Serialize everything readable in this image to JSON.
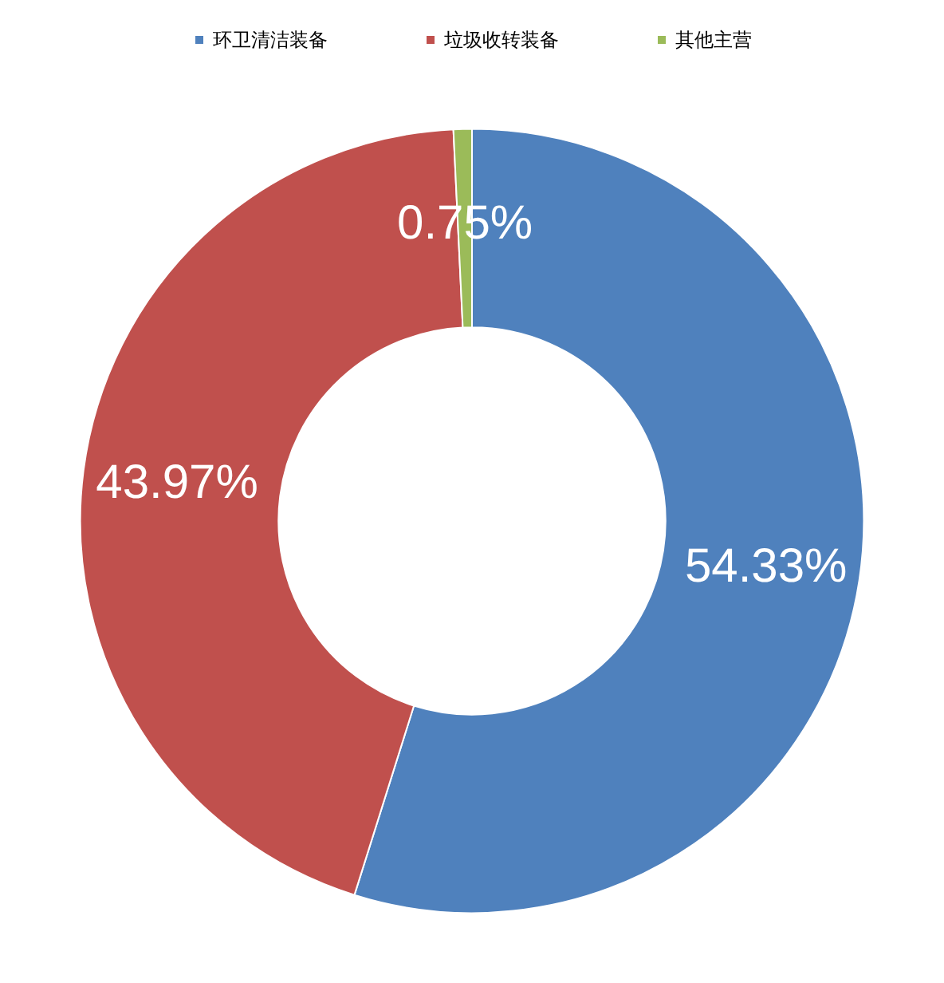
{
  "chart_data": {
    "type": "donut",
    "categories": [
      "环卫清洁装备",
      "垃圾收转装备",
      "其他主营"
    ],
    "values": [
      54.33,
      43.97,
      0.75
    ],
    "colors": [
      "#4f81bd",
      "#c0504d",
      "#9bbb59"
    ],
    "value_labels": [
      "54.33%",
      "43.97%",
      "0.75%"
    ],
    "legend": "top"
  }
}
